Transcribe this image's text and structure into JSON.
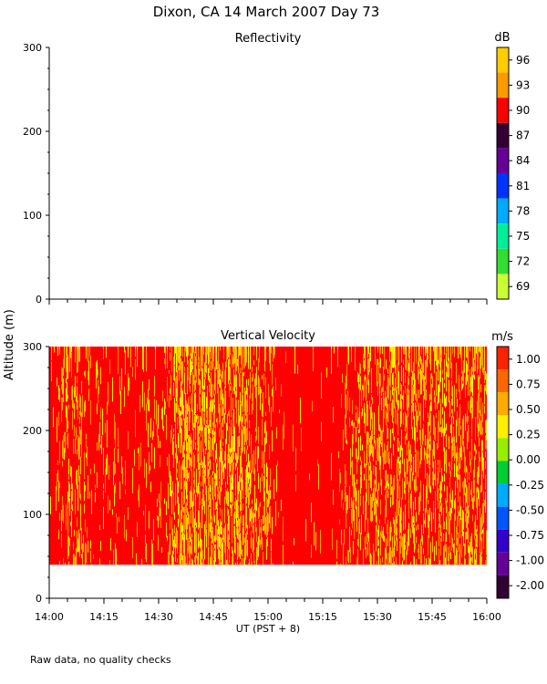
{
  "title": "Dixon, CA 14 March 2007  Day  73",
  "footnote": "Raw data, no quality checks",
  "shared_ylabel": "Altitude (m)",
  "chart_data": [
    {
      "type": "heatmap",
      "title": "Reflectivity",
      "ylim": [
        0,
        300
      ],
      "yticks": [
        "0",
        "100",
        "200",
        "300"
      ],
      "has_data": false,
      "colorbar": {
        "unit": "dB",
        "labels": [
          "96",
          "93",
          "90",
          "87",
          "84",
          "81",
          "78",
          "75",
          "72",
          "69"
        ],
        "colors": [
          "#ffcc00",
          "#ff9900",
          "#ff0000",
          "#330033",
          "#660099",
          "#0033ff",
          "#00aaff",
          "#00ee99",
          "#33dd33",
          "#ccff33"
        ]
      }
    },
    {
      "type": "heatmap",
      "title": "Vertical Velocity",
      "ylim": [
        0,
        300
      ],
      "yticks": [
        "0",
        "100",
        "200",
        "300"
      ],
      "xlabel": "UT  (PST + 8)",
      "xticks": [
        "14:00",
        "14:15",
        "14:30",
        "14:45",
        "15:00",
        "15:15",
        "15:30",
        "15:45",
        "16:00"
      ],
      "data_range_altitude": [
        40,
        300
      ],
      "colorbar": {
        "unit": "m/s",
        "labels": [
          "1.00",
          "0.75",
          "0.50",
          "0.25",
          "0.00",
          "-0.25",
          "-0.50",
          "-0.75",
          "-1.00",
          "-2.00"
        ],
        "colors": [
          "#ff2200",
          "#ff6600",
          "#ffaa00",
          "#ffee00",
          "#99ee00",
          "#00cc33",
          "#00aaff",
          "#0055ff",
          "#3300cc",
          "#660099",
          "#330033"
        ]
      },
      "activity_profile": [
        {
          "t": "14:00",
          "level": 0.15
        },
        {
          "t": "14:08",
          "level": 0.7
        },
        {
          "t": "14:12",
          "level": 0.2
        },
        {
          "t": "14:30",
          "level": 0.2
        },
        {
          "t": "14:36",
          "level": 0.8
        },
        {
          "t": "14:50",
          "level": 0.85
        },
        {
          "t": "15:00",
          "level": 0.5
        },
        {
          "t": "15:03",
          "level": 0.05
        },
        {
          "t": "15:18",
          "level": 0.05
        },
        {
          "t": "15:24",
          "level": 0.6
        },
        {
          "t": "16:00",
          "level": 0.65
        }
      ]
    }
  ]
}
